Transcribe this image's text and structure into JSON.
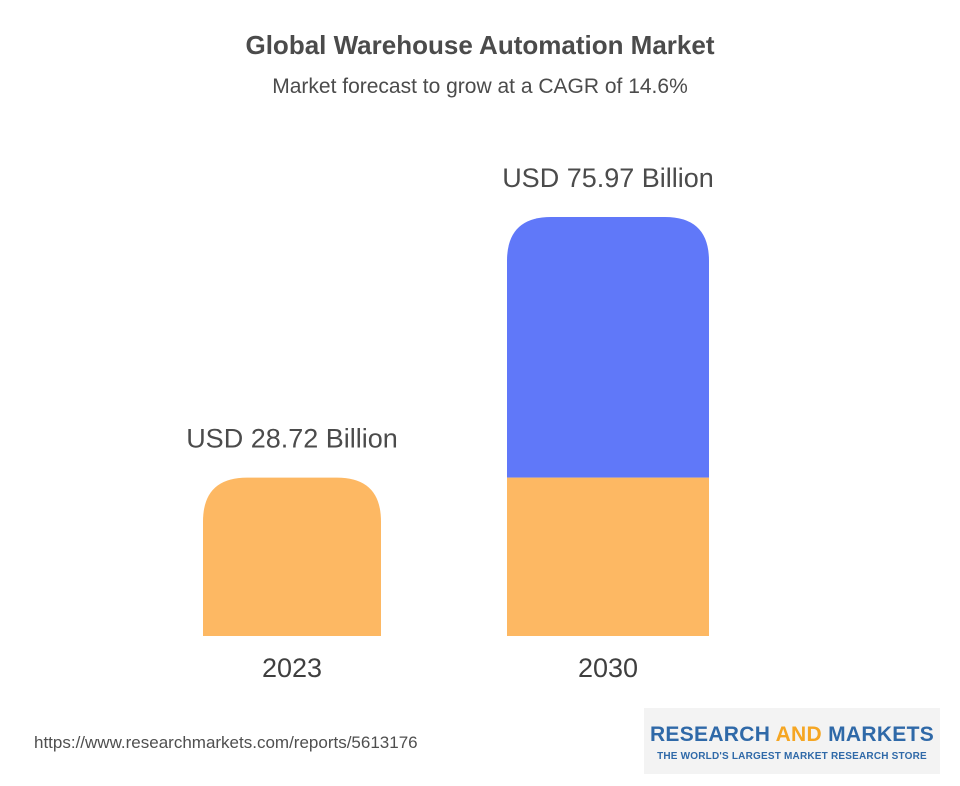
{
  "chart_data": {
    "type": "bar",
    "title": "Global Warehouse Automation Market",
    "subtitle": "Market forecast to grow at a CAGR of 14.6%",
    "categories": [
      "2023",
      "2030"
    ],
    "values": [
      28.72,
      75.97
    ],
    "value_labels": [
      "USD 28.72 Billion",
      "USD 75.97 Billion"
    ],
    "ylim": [
      0,
      75.97
    ],
    "colors": {
      "base": "#fdb863",
      "growth": "#6078f9"
    },
    "stacked_base_in_2030": 28.72
  },
  "footer": {
    "source_url": "https://www.researchmarkets.com/reports/5613176",
    "logo": {
      "word1": "RESEARCH",
      "word2": "AND",
      "word3": "MARKETS",
      "tagline": "THE WORLD'S LARGEST MARKET RESEARCH STORE"
    }
  }
}
